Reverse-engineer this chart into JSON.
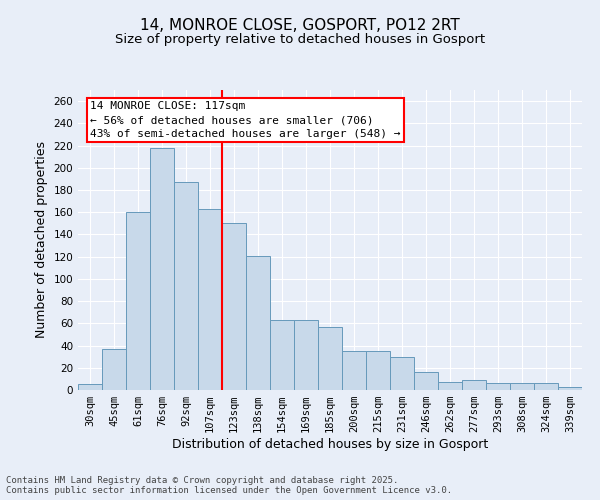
{
  "title_line1": "14, MONROE CLOSE, GOSPORT, PO12 2RT",
  "title_line2": "Size of property relative to detached houses in Gosport",
  "xlabel": "Distribution of detached houses by size in Gosport",
  "ylabel": "Number of detached properties",
  "categories": [
    "30sqm",
    "45sqm",
    "61sqm",
    "76sqm",
    "92sqm",
    "107sqm",
    "123sqm",
    "138sqm",
    "154sqm",
    "169sqm",
    "185sqm",
    "200sqm",
    "215sqm",
    "231sqm",
    "246sqm",
    "262sqm",
    "277sqm",
    "293sqm",
    "308sqm",
    "324sqm",
    "339sqm"
  ],
  "values": [
    5,
    37,
    160,
    218,
    187,
    163,
    150,
    121,
    63,
    63,
    57,
    35,
    35,
    30,
    16,
    7,
    9,
    6,
    6,
    6,
    3
  ],
  "bar_color": "#c8d9ea",
  "bar_edge_color": "#6699bb",
  "vline_color": "red",
  "vline_index": 5.5,
  "annotation_text": "14 MONROE CLOSE: 117sqm\n← 56% of detached houses are smaller (706)\n43% of semi-detached houses are larger (548) →",
  "annotation_box_color": "white",
  "annotation_box_edge_color": "red",
  "ylim": [
    0,
    270
  ],
  "yticks": [
    0,
    20,
    40,
    60,
    80,
    100,
    120,
    140,
    160,
    180,
    200,
    220,
    240,
    260
  ],
  "background_color": "#e8eef8",
  "plot_background_color": "#e8eef8",
  "grid_color": "white",
  "footer_text": "Contains HM Land Registry data © Crown copyright and database right 2025.\nContains public sector information licensed under the Open Government Licence v3.0.",
  "title_fontsize": 11,
  "subtitle_fontsize": 9.5,
  "axis_label_fontsize": 9,
  "tick_fontsize": 7.5,
  "annotation_fontsize": 8
}
